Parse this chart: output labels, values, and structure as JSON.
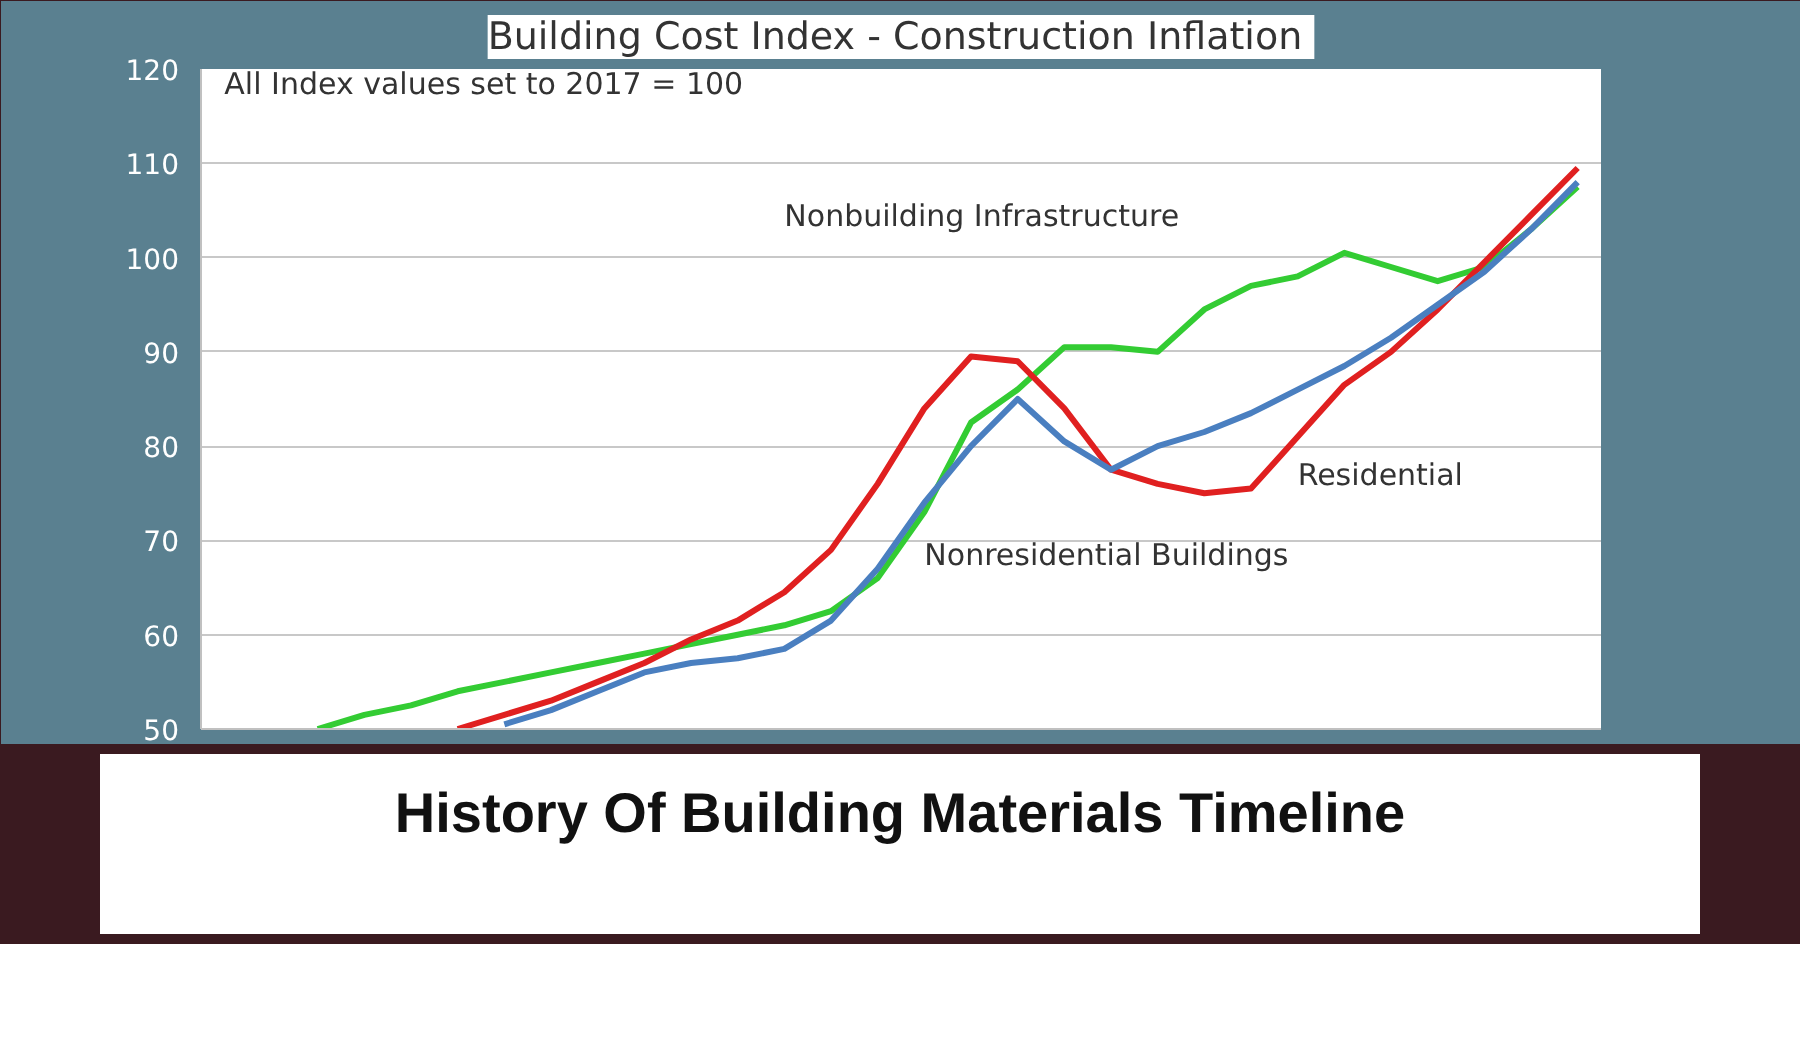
{
  "chart_data": {
    "type": "line",
    "title": "Building Cost Index  - Construction Inflation",
    "annotations": [
      "All Index values set to 2017 = 100",
      "History Of Building Materials Timeline"
    ],
    "categories": [
      null,
      null,
      null,
      null,
      null,
      null,
      null,
      null,
      null,
      null,
      null,
      null,
      null,
      null,
      null,
      null,
      null,
      null,
      null,
      null,
      null,
      null,
      null,
      null,
      null,
      null,
      null,
      null,
      null,
      null
    ],
    "series": [
      {
        "name": "Nonbuilding Infrastructure",
        "color": "#33cc33",
        "values": [
          null,
          null,
          50,
          51.5,
          52.5,
          54,
          55,
          56,
          57,
          58,
          59,
          60,
          61,
          62.5,
          66,
          73,
          82.5,
          86,
          90.5,
          90.5,
          90,
          94.5,
          97,
          98,
          100.5,
          99,
          97.5,
          99,
          103,
          107.5
        ]
      },
      {
        "name": "Residential",
        "color": "#e02020",
        "values": [
          null,
          null,
          null,
          null,
          null,
          50,
          51.5,
          53,
          55,
          57,
          59.5,
          61.5,
          64.5,
          69,
          76,
          84,
          89.5,
          89,
          84,
          77.5,
          76,
          75,
          75.5,
          81,
          86.5,
          90,
          94.5,
          99.5,
          104.5,
          109.5
        ]
      },
      {
        "name": "Nonresidential Buildings",
        "color": "#4a7fc0",
        "values": [
          null,
          null,
          null,
          null,
          null,
          null,
          50.5,
          52,
          54,
          56,
          57,
          57.5,
          58.5,
          61.5,
          67,
          74,
          80,
          85,
          80.5,
          77.5,
          80,
          81.5,
          83.5,
          86,
          88.5,
          91.5,
          95,
          98.5,
          103,
          108
        ]
      }
    ],
    "ylim": [
      50,
      120
    ],
    "yticks": [
      50,
      60,
      70,
      80,
      90,
      100,
      110,
      120
    ],
    "grid": "y",
    "tick_labels": "y"
  }
}
